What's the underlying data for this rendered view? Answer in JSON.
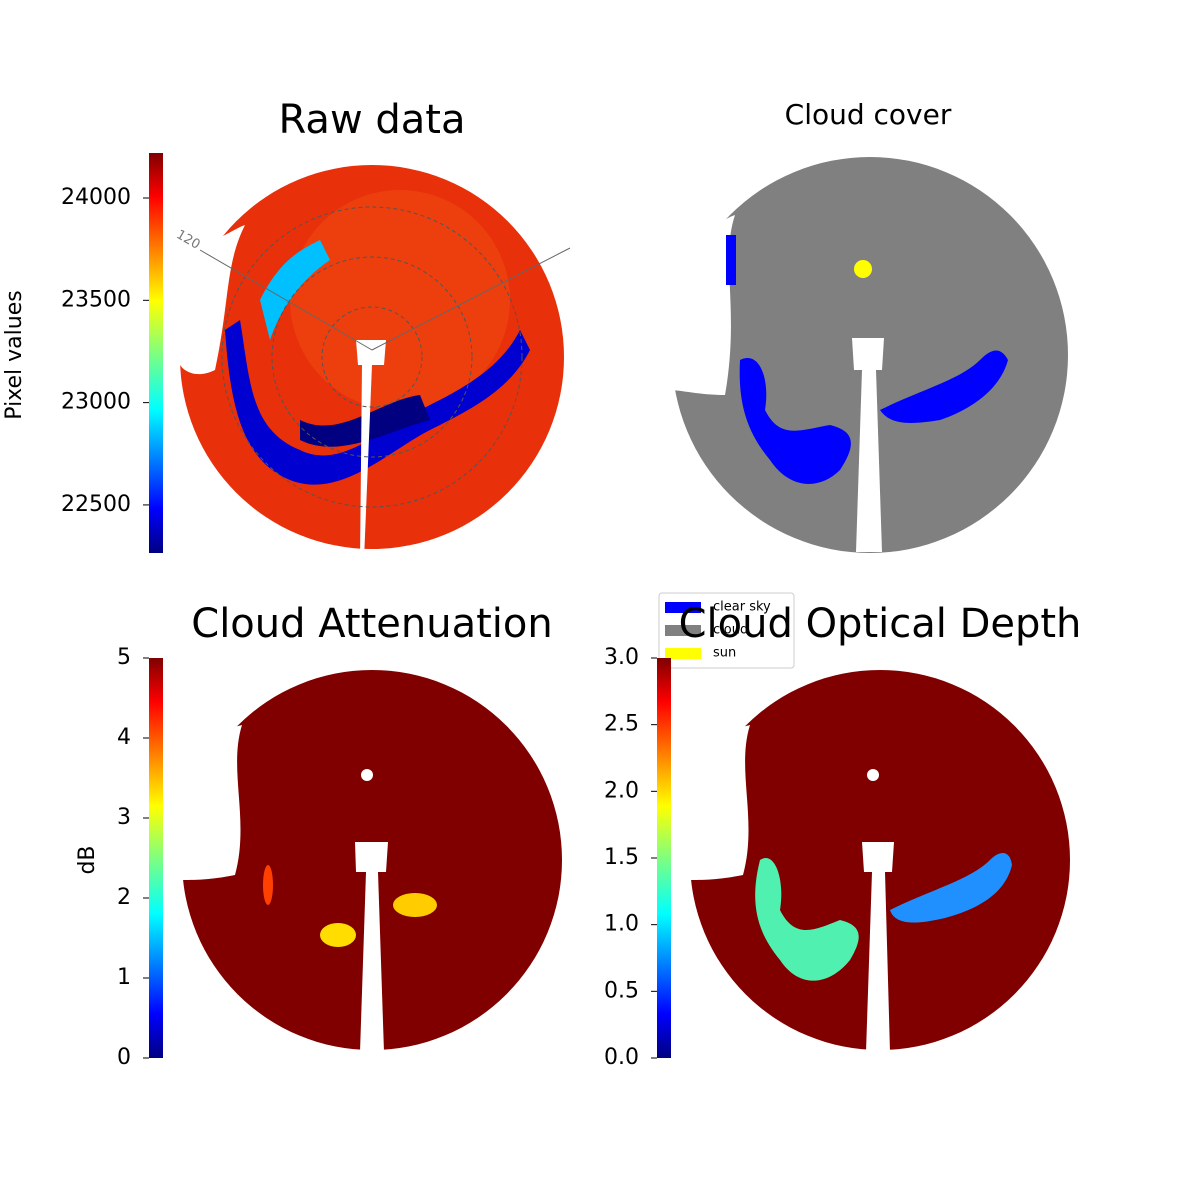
{
  "chart_data": [
    {
      "type": "heatmap",
      "title": "Raw data",
      "colorbar_label": "Pixel values",
      "clim": [
        22265,
        24220
      ],
      "cticks": [
        22500,
        23000,
        23500,
        24000
      ],
      "annotations": [
        "120"
      ]
    },
    {
      "type": "categorical",
      "title": "Cloud cover",
      "legend": [
        {
          "name": "clear sky",
          "color": "#0000ff"
        },
        {
          "name": "cloud",
          "color": "#808080"
        },
        {
          "name": "sun",
          "color": "#ffff00"
        }
      ]
    },
    {
      "type": "heatmap",
      "title": "Cloud Attenuation",
      "colorbar_label": "dB",
      "clim": [
        0,
        5
      ],
      "cticks": [
        0,
        1,
        2,
        3,
        4,
        5
      ]
    },
    {
      "type": "heatmap",
      "title": "Cloud Optical Depth",
      "clim": [
        0,
        3
      ],
      "cticks": [
        {
          "value": 0,
          "label": "0.0"
        },
        {
          "value": 0.5,
          "label": "0.5"
        },
        {
          "value": 1,
          "label": "1.0"
        },
        {
          "value": 1.5,
          "label": "1.5"
        },
        {
          "value": 2,
          "label": "2.0"
        },
        {
          "value": 2.5,
          "label": "2.5"
        },
        {
          "value": 3,
          "label": "3.0"
        }
      ]
    }
  ]
}
